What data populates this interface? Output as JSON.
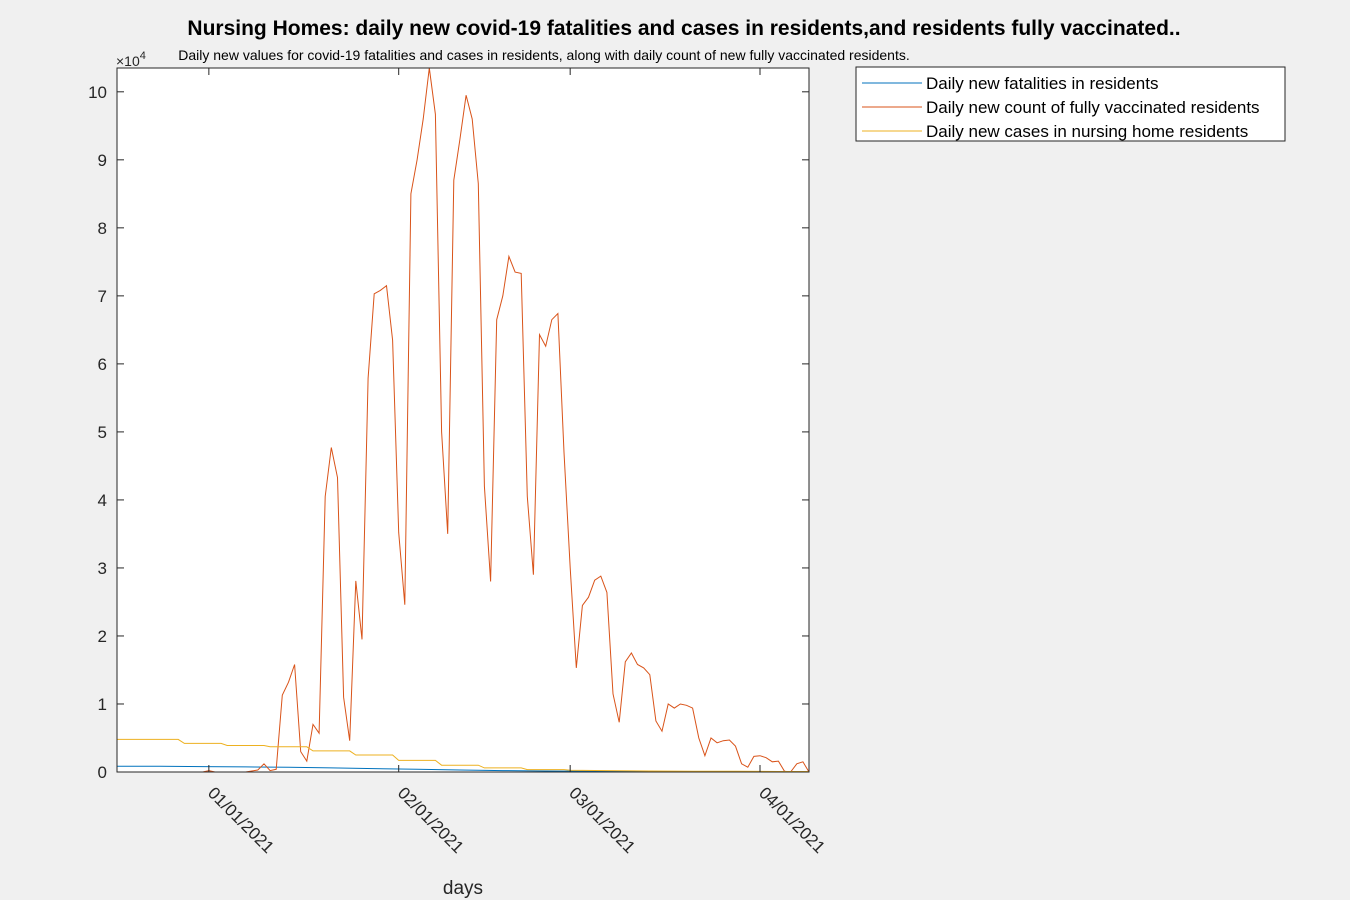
{
  "chart_data": {
    "type": "line",
    "title": "Nursing Homes: daily new covid-19 fatalities and cases in residents,and residents fully vaccinated..",
    "subtitle": "Daily new values for covid-19 fatalities and cases in residents, along with daily count of new fully vaccinated residents.",
    "xlabel": "days",
    "ylabel": "",
    "y_exponent_label": "×10",
    "y_exponent": "4",
    "y_scale": 10000,
    "xlim": [
      "2020-12-17",
      "2021-04-09"
    ],
    "ylim": [
      0,
      103500
    ],
    "x_ticks": [
      {
        "date": "2021-01-01",
        "label": "01/01/2021"
      },
      {
        "date": "2021-02-01",
        "label": "02/01/2021"
      },
      {
        "date": "2021-03-01",
        "label": "03/01/2021"
      },
      {
        "date": "2021-04-01",
        "label": "04/01/2021"
      }
    ],
    "y_ticks": [
      {
        "value": 0,
        "label": "0"
      },
      {
        "value": 10000,
        "label": "1"
      },
      {
        "value": 20000,
        "label": "2"
      },
      {
        "value": 30000,
        "label": "3"
      },
      {
        "value": 40000,
        "label": "4"
      },
      {
        "value": 50000,
        "label": "5"
      },
      {
        "value": 60000,
        "label": "6"
      },
      {
        "value": 70000,
        "label": "7"
      },
      {
        "value": 80000,
        "label": "8"
      },
      {
        "value": 90000,
        "label": "9"
      },
      {
        "value": 100000,
        "label": "10"
      }
    ],
    "grid": false,
    "legend_position": "outside-top-right",
    "series": [
      {
        "name": "Daily new fatalities in residents",
        "color": "#0072bd",
        "points": [
          [
            "2020-12-17",
            850
          ],
          [
            "2020-12-24",
            860
          ],
          [
            "2020-12-31",
            800
          ],
          [
            "2021-01-07",
            750
          ],
          [
            "2021-01-14",
            700
          ],
          [
            "2021-01-21",
            600
          ],
          [
            "2021-01-28",
            500
          ],
          [
            "2021-02-04",
            400
          ],
          [
            "2021-02-11",
            300
          ],
          [
            "2021-02-18",
            200
          ],
          [
            "2021-02-25",
            150
          ],
          [
            "2021-03-04",
            100
          ],
          [
            "2021-03-11",
            80
          ],
          [
            "2021-03-18",
            60
          ],
          [
            "2021-03-25",
            50
          ],
          [
            "2021-04-01",
            40
          ],
          [
            "2021-04-09",
            30
          ]
        ]
      },
      {
        "name": "Daily new count of fully vaccinated residents",
        "color": "#d95319",
        "points": [
          [
            "2020-12-17",
            0
          ],
          [
            "2020-12-31",
            0
          ],
          [
            "2021-01-01",
            200
          ],
          [
            "2021-01-02",
            0
          ],
          [
            "2021-01-07",
            0
          ],
          [
            "2021-01-09",
            300
          ],
          [
            "2021-01-10",
            1200
          ],
          [
            "2021-01-11",
            200
          ],
          [
            "2021-01-12",
            400
          ],
          [
            "2021-01-13",
            11300
          ],
          [
            "2021-01-14",
            13200
          ],
          [
            "2021-01-15",
            15800
          ],
          [
            "2021-01-16",
            3000
          ],
          [
            "2021-01-17",
            1600
          ],
          [
            "2021-01-18",
            7000
          ],
          [
            "2021-01-19",
            5700
          ],
          [
            "2021-01-20",
            40500
          ],
          [
            "2021-01-21",
            47700
          ],
          [
            "2021-01-22",
            43300
          ],
          [
            "2021-01-23",
            11000
          ],
          [
            "2021-01-24",
            4600
          ],
          [
            "2021-01-25",
            28100
          ],
          [
            "2021-01-26",
            19500
          ],
          [
            "2021-01-27",
            57900
          ],
          [
            "2021-01-28",
            70300
          ],
          [
            "2021-01-29",
            70800
          ],
          [
            "2021-01-30",
            71500
          ],
          [
            "2021-01-31",
            63500
          ],
          [
            "2021-02-01",
            35200
          ],
          [
            "2021-02-02",
            24600
          ],
          [
            "2021-02-03",
            85000
          ],
          [
            "2021-02-04",
            90000
          ],
          [
            "2021-02-05",
            96000
          ],
          [
            "2021-02-06",
            103500
          ],
          [
            "2021-02-07",
            96700
          ],
          [
            "2021-02-08",
            50000
          ],
          [
            "2021-02-09",
            35000
          ],
          [
            "2021-02-10",
            87000
          ],
          [
            "2021-02-11",
            93000
          ],
          [
            "2021-02-12",
            99500
          ],
          [
            "2021-02-13",
            96000
          ],
          [
            "2021-02-14",
            86500
          ],
          [
            "2021-02-15",
            42000
          ],
          [
            "2021-02-16",
            28000
          ],
          [
            "2021-02-17",
            66500
          ],
          [
            "2021-02-18",
            70000
          ],
          [
            "2021-02-19",
            75800
          ],
          [
            "2021-02-20",
            73500
          ],
          [
            "2021-02-21",
            73300
          ],
          [
            "2021-02-22",
            40500
          ],
          [
            "2021-02-23",
            29000
          ],
          [
            "2021-02-24",
            64300
          ],
          [
            "2021-02-25",
            62600
          ],
          [
            "2021-02-26",
            66500
          ],
          [
            "2021-02-27",
            67400
          ],
          [
            "2021-02-28",
            47000
          ],
          [
            "2021-03-01",
            30000
          ],
          [
            "2021-03-02",
            15300
          ],
          [
            "2021-03-03",
            24500
          ],
          [
            "2021-03-04",
            25700
          ],
          [
            "2021-03-05",
            28200
          ],
          [
            "2021-03-06",
            28800
          ],
          [
            "2021-03-07",
            26400
          ],
          [
            "2021-03-08",
            11500
          ],
          [
            "2021-03-09",
            7300
          ],
          [
            "2021-03-10",
            16200
          ],
          [
            "2021-03-11",
            17500
          ],
          [
            "2021-03-12",
            15800
          ],
          [
            "2021-03-13",
            15300
          ],
          [
            "2021-03-14",
            14300
          ],
          [
            "2021-03-15",
            7500
          ],
          [
            "2021-03-16",
            6000
          ],
          [
            "2021-03-17",
            10000
          ],
          [
            "2021-03-18",
            9400
          ],
          [
            "2021-03-19",
            10000
          ],
          [
            "2021-03-20",
            9800
          ],
          [
            "2021-03-21",
            9400
          ],
          [
            "2021-03-22",
            5000
          ],
          [
            "2021-03-23",
            2400
          ],
          [
            "2021-03-24",
            5000
          ],
          [
            "2021-03-25",
            4300
          ],
          [
            "2021-03-26",
            4600
          ],
          [
            "2021-03-27",
            4700
          ],
          [
            "2021-03-28",
            3800
          ],
          [
            "2021-03-29",
            1200
          ],
          [
            "2021-03-30",
            700
          ],
          [
            "2021-03-31",
            2300
          ],
          [
            "2021-04-01",
            2400
          ],
          [
            "2021-04-02",
            2100
          ],
          [
            "2021-04-03",
            1500
          ],
          [
            "2021-04-04",
            1600
          ],
          [
            "2021-04-05",
            100
          ],
          [
            "2021-04-06",
            0
          ],
          [
            "2021-04-07",
            1200
          ],
          [
            "2021-04-08",
            1500
          ],
          [
            "2021-04-09",
            0
          ]
        ]
      },
      {
        "name": "Daily new cases in nursing home residents",
        "color": "#edb120",
        "points": [
          [
            "2020-12-17",
            4800
          ],
          [
            "2020-12-27",
            4800
          ],
          [
            "2020-12-28",
            4200
          ],
          [
            "2021-01-03",
            4200
          ],
          [
            "2021-01-04",
            3900
          ],
          [
            "2021-01-10",
            3900
          ],
          [
            "2021-01-11",
            3700
          ],
          [
            "2021-01-17",
            3700
          ],
          [
            "2021-01-18",
            3100
          ],
          [
            "2021-01-24",
            3100
          ],
          [
            "2021-01-25",
            2500
          ],
          [
            "2021-01-31",
            2500
          ],
          [
            "2021-02-01",
            1700
          ],
          [
            "2021-02-07",
            1700
          ],
          [
            "2021-02-08",
            1000
          ],
          [
            "2021-02-14",
            1000
          ],
          [
            "2021-02-15",
            600
          ],
          [
            "2021-02-21",
            600
          ],
          [
            "2021-02-22",
            350
          ],
          [
            "2021-02-28",
            350
          ],
          [
            "2021-03-01",
            250
          ],
          [
            "2021-03-07",
            200
          ],
          [
            "2021-03-14",
            150
          ],
          [
            "2021-03-21",
            100
          ],
          [
            "2021-03-28",
            100
          ],
          [
            "2021-04-04",
            80
          ],
          [
            "2021-04-09",
            80
          ]
        ]
      }
    ]
  }
}
